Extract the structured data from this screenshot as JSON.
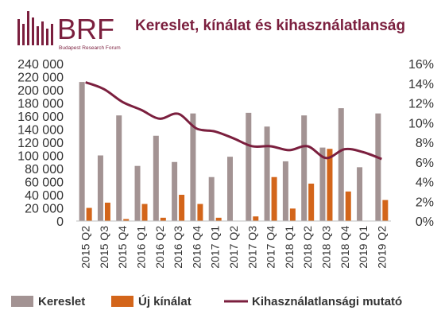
{
  "logo": {
    "name": "BRF",
    "tagline": "Budapest Research Forum"
  },
  "colors": {
    "brand": "#7b1f3e",
    "demand": "#a39393",
    "supply": "#d3651a",
    "rate_line": "#7b1f3e"
  },
  "chart_data": {
    "type": "bar",
    "title": "Kereslet, kínálat és kihasználatlanság",
    "categories": [
      "2015 Q2",
      "2015 Q3",
      "2015 Q4",
      "2016 Q1",
      "2016 Q2",
      "2016 Q3",
      "2016 Q4",
      "2017 Q1",
      "2017 Q2",
      "2017 Q3",
      "2017 Q4",
      "2018 Q1",
      "2018 Q2",
      "2018 Q3",
      "2018 Q4",
      "2019 Q1",
      "2019 Q2"
    ],
    "series": [
      {
        "name": "Kereslet",
        "type": "bar",
        "axis": "left",
        "values": [
          212000,
          100000,
          161000,
          84000,
          130000,
          90000,
          164000,
          67000,
          98000,
          165000,
          144000,
          91000,
          161000,
          112000,
          172000,
          82000,
          164000
        ]
      },
      {
        "name": "Új kínálat",
        "type": "bar",
        "axis": "left",
        "values": [
          20000,
          28000,
          3000,
          26000,
          5000,
          40000,
          26000,
          5000,
          0,
          7000,
          67000,
          19000,
          57000,
          110000,
          45000,
          0,
          32000
        ]
      },
      {
        "name": "Kihasználatlansági mutató",
        "type": "line",
        "axis": "right",
        "values": [
          14.1,
          13.4,
          12.1,
          11.3,
          10.4,
          10.9,
          9.4,
          9.1,
          8.4,
          7.6,
          7.6,
          7.2,
          7.6,
          6.4,
          7.3,
          7.0,
          6.3
        ]
      }
    ],
    "yleft": {
      "min": 0,
      "max": 240000,
      "step": 20000,
      "tick_labels": [
        "0",
        "20 000",
        "40 000",
        "60 000",
        "80 000",
        "100 000",
        "120 000",
        "140 000",
        "160 000",
        "180 000",
        "200 000",
        "220 000",
        "240 000"
      ]
    },
    "yright": {
      "min": 0,
      "max": 16,
      "step": 2,
      "tick_labels": [
        "0%",
        "2%",
        "4%",
        "6%",
        "8%",
        "10%",
        "12%",
        "14%",
        "16%"
      ]
    },
    "grid": false,
    "legend": "bottom"
  }
}
